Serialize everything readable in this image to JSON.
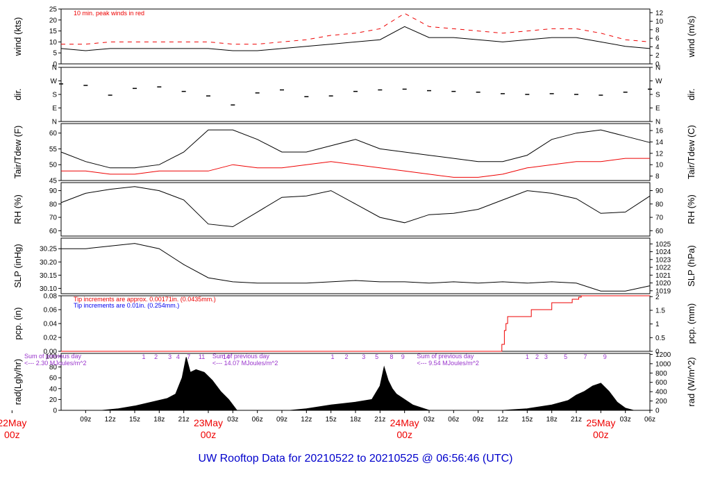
{
  "title": "UW Rooftop Data for 20210522  to  20210525 @ 06:56:46  (UTC)",
  "colors": {
    "primary": "#000000",
    "accent": "#ee0000",
    "blue": "#0000ee",
    "purple": "#9933cc",
    "title": "#0000cc"
  },
  "chart_data": {
    "type": "line",
    "x_axis": {
      "unit": "hours since 2021-05-22 06:00 UTC",
      "range": [
        0,
        72
      ],
      "ticks": [
        {
          "x": 3,
          "label": "09z"
        },
        {
          "x": 6,
          "label": "12z"
        },
        {
          "x": 9,
          "label": "15z"
        },
        {
          "x": 12,
          "label": "18z"
        },
        {
          "x": 15,
          "label": "21z"
        },
        {
          "x": 21,
          "label": "03z"
        },
        {
          "x": 24,
          "label": "06z"
        },
        {
          "x": 27,
          "label": "09z"
        },
        {
          "x": 30,
          "label": "12z"
        },
        {
          "x": 33,
          "label": "15z"
        },
        {
          "x": 36,
          "label": "18z"
        },
        {
          "x": 39,
          "label": "21z"
        },
        {
          "x": 45,
          "label": "03z"
        },
        {
          "x": 48,
          "label": "06z"
        },
        {
          "x": 51,
          "label": "09z"
        },
        {
          "x": 54,
          "label": "12z"
        },
        {
          "x": 57,
          "label": "15z"
        },
        {
          "x": 60,
          "label": "18z"
        },
        {
          "x": 63,
          "label": "21z"
        },
        {
          "x": 69,
          "label": "03z"
        },
        {
          "x": 72,
          "label": "06z"
        }
      ],
      "day_labels": [
        {
          "x": -6,
          "date": "22May",
          "hour": "00z"
        },
        {
          "x": 18,
          "date": "23May",
          "hour": "00z"
        },
        {
          "x": 42,
          "date": "24May",
          "hour": "00z"
        },
        {
          "x": 66,
          "date": "25May",
          "hour": "00z"
        }
      ]
    },
    "panels": [
      {
        "id": "wind",
        "ylabel_left": "wind (kts)",
        "ylabel_right": "wind (m/s)",
        "ylim": [
          0,
          25
        ],
        "left_ticks": [
          "0",
          "5",
          "10",
          "15",
          "20",
          "25"
        ],
        "right_ticks": [
          "0",
          "2",
          "4",
          "6",
          "8",
          "10",
          "12"
        ],
        "right_tick_values": [
          0,
          2,
          4,
          6,
          8,
          10,
          12
        ],
        "right_scale": 1.9438,
        "annotation": "10 min. peak winds in red",
        "series": [
          {
            "name": "wind",
            "x": [
              0,
              3,
              6,
              9,
              12,
              15,
              18,
              21,
              24,
              27,
              30,
              33,
              36,
              39,
              42,
              45,
              48,
              51,
              54,
              57,
              60,
              63,
              66,
              69,
              72
            ],
            "y": [
              7,
              6,
              7,
              7,
              7,
              7,
              7,
              6,
              6,
              7,
              8,
              9,
              10,
              11,
              17,
              12,
              12,
              11,
              10,
              11,
              12,
              12,
              10,
              8,
              7
            ]
          },
          {
            "name": "peak",
            "x": [
              0,
              3,
              6,
              9,
              12,
              15,
              18,
              21,
              24,
              27,
              30,
              33,
              36,
              39,
              42,
              45,
              48,
              51,
              54,
              57,
              60,
              63,
              66,
              69,
              72
            ],
            "y": [
              9,
              9,
              10,
              10,
              10,
              10,
              10,
              9,
              9,
              10,
              11,
              13,
              14,
              16,
              23,
              17,
              16,
              15,
              14,
              15,
              16,
              16,
              14,
              11,
              10
            ]
          }
        ]
      },
      {
        "id": "dir",
        "ylabel_left": "dir.",
        "ylabel_right": "dir.",
        "ylim": [
          0,
          360
        ],
        "left_ticks": [
          "N",
          "E",
          "S",
          "W",
          "N"
        ],
        "right_ticks": [
          "N",
          "E",
          "S",
          "W",
          "N"
        ],
        "series": [
          {
            "name": "direction",
            "x": [
              0,
              3,
              6,
              9,
              12,
              15,
              18,
              21,
              24,
              27,
              30,
              33,
              36,
              39,
              42,
              45,
              48,
              51,
              54,
              57,
              60,
              63,
              66,
              69,
              72
            ],
            "y": [
              250,
              240,
              175,
              220,
              230,
              200,
              170,
              110,
              190,
              210,
              165,
              170,
              200,
              210,
              215,
              205,
              200,
              195,
              185,
              180,
              185,
              180,
              175,
              195,
              215
            ]
          }
        ]
      },
      {
        "id": "temp",
        "ylabel_left": "Tair/Tdew (F)",
        "ylabel_right": "Tair/Tdew (C)",
        "ylim": [
          45,
          63
        ],
        "left_ticks": [
          "45",
          "50",
          "55",
          "60"
        ],
        "left_tick_values": [
          45,
          50,
          55,
          60
        ],
        "right_ticks": [
          "8",
          "10",
          "12",
          "14",
          "16"
        ],
        "right_tick_values": [
          8,
          10,
          12,
          14,
          16
        ],
        "series": [
          {
            "name": "Tair",
            "x": [
              0,
              3,
              6,
              9,
              12,
              15,
              18,
              21,
              24,
              27,
              30,
              33,
              36,
              39,
              42,
              45,
              48,
              51,
              54,
              57,
              60,
              63,
              66,
              69,
              72
            ],
            "y": [
              54,
              51,
              49,
              49,
              50,
              54,
              61,
              61,
              58,
              54,
              54,
              56,
              58,
              55,
              54,
              53,
              52,
              51,
              51,
              53,
              58,
              60,
              61,
              59,
              57
            ]
          },
          {
            "name": "Tdew",
            "x": [
              0,
              3,
              6,
              9,
              12,
              15,
              18,
              21,
              24,
              27,
              30,
              33,
              36,
              39,
              42,
              45,
              48,
              51,
              54,
              57,
              60,
              63,
              66,
              69,
              72
            ],
            "y": [
              48,
              48,
              47,
              47,
              48,
              48,
              48,
              50,
              49,
              49,
              50,
              51,
              50,
              49,
              48,
              47,
              46,
              46,
              47,
              49,
              50,
              51,
              51,
              52,
              52
            ]
          }
        ]
      },
      {
        "id": "rh",
        "ylabel_left": "RH (%)",
        "ylabel_right": "RH (%)",
        "ylim": [
          56,
          96
        ],
        "left_ticks": [
          "60",
          "70",
          "80",
          "90"
        ],
        "left_tick_values": [
          60,
          70,
          80,
          90
        ],
        "right_ticks": [
          "60",
          "70",
          "80",
          "90"
        ],
        "right_tick_values": [
          60,
          70,
          80,
          90
        ],
        "series": [
          {
            "name": "RH",
            "x": [
              0,
              3,
              6,
              9,
              12,
              15,
              18,
              21,
              24,
              27,
              30,
              33,
              36,
              39,
              42,
              45,
              48,
              51,
              54,
              57,
              60,
              63,
              66,
              69,
              72
            ],
            "y": [
              81,
              88,
              91,
              93,
              90,
              83,
              65,
              63,
              74,
              85,
              86,
              90,
              80,
              70,
              66,
              72,
              73,
              76,
              83,
              90,
              88,
              84,
              73,
              74,
              86
            ]
          }
        ]
      },
      {
        "id": "slp",
        "ylabel_left": "SLP (inHg)",
        "ylabel_right": "SLP (hPa)",
        "ylim": [
          30.08,
          30.29
        ],
        "left_ticks": [
          "30.10",
          "30.15",
          "30.20",
          "30.25"
        ],
        "left_tick_values": [
          30.1,
          30.15,
          30.2,
          30.25
        ],
        "right_ticks": [
          "1019",
          "1020",
          "1021",
          "1022",
          "1023",
          "1024",
          "1025"
        ],
        "right_tick_values": [
          1019,
          1020,
          1021,
          1022,
          1023,
          1024,
          1025
        ],
        "series": [
          {
            "name": "SLP",
            "x": [
              0,
              3,
              6,
              9,
              12,
              15,
              18,
              21,
              24,
              27,
              30,
              33,
              36,
              39,
              42,
              45,
              48,
              51,
              54,
              57,
              60,
              63,
              66,
              69,
              72
            ],
            "y": [
              30.25,
              30.25,
              30.26,
              30.27,
              30.25,
              30.19,
              30.14,
              30.125,
              30.12,
              30.12,
              30.12,
              30.125,
              30.13,
              30.125,
              30.125,
              30.12,
              30.125,
              30.12,
              30.125,
              30.12,
              30.125,
              30.12,
              30.09,
              30.09,
              30.11
            ]
          }
        ]
      },
      {
        "id": "pcp",
        "ylabel_left": "pcp. (in)",
        "ylabel_right": "pcp. (mm)",
        "ylim": [
          0,
          0.08
        ],
        "left_ticks": [
          "0.00",
          "0.02",
          "0.04",
          "0.06",
          "0.08"
        ],
        "left_tick_values": [
          0,
          0.02,
          0.04,
          0.06,
          0.08
        ],
        "right_ticks": [
          "0",
          "0.5",
          "1",
          "1.5",
          "2"
        ],
        "right_tick_values": [
          0,
          0.5,
          1,
          1.5,
          2
        ],
        "annotations": [
          "Tip increments are approx. 0.00171in. (0.0435mm.)",
          "Tip increments are 0.01in. (0.254mm.)"
        ],
        "series": [
          {
            "name": "precip",
            "x": [
              0,
              53.8,
              53.9,
              54.2,
              54.4,
              54.6,
              57.5,
              60.0,
              62.5,
              63.3,
              63.6,
              72
            ],
            "y": [
              0,
              0,
              0.01,
              0.03,
              0.04,
              0.05,
              0.06,
              0.07,
              0.075,
              0.078,
              0.08,
              0.08
            ]
          }
        ]
      },
      {
        "id": "rad",
        "ylabel_left": "rad(Lgly/hr)",
        "ylabel_right": "rad (W/m^2)",
        "ylim": [
          0,
          105
        ],
        "left_ticks": [
          "0",
          "20",
          "40",
          "60",
          "80",
          "100"
        ],
        "left_tick_values": [
          0,
          20,
          40,
          60,
          80,
          100
        ],
        "right_ticks": [
          "0",
          "200",
          "400",
          "600",
          "800",
          "1000",
          "1200"
        ],
        "right_tick_values": [
          0,
          200,
          400,
          600,
          800,
          1000,
          1200
        ],
        "annotations": [
          {
            "x": -4.5,
            "row": 0,
            "text": "Sum of previous day"
          },
          {
            "x": -4.5,
            "row": 1,
            "text": "<--- 2.30 MJoules/m^2"
          },
          {
            "x": 18.5,
            "row": 0,
            "text": "Sum of previous day"
          },
          {
            "x": 18.5,
            "row": 1,
            "text": "<--- 14.07 MJoules/m^2"
          },
          {
            "x": 43.5,
            "row": 0,
            "text": "Sum of previous day"
          },
          {
            "x": 43.5,
            "row": 1,
            "text": "<--- 9.54 MJoules/m^2"
          }
        ],
        "hour_marks": [
          {
            "x": 10.1,
            "label": "1"
          },
          {
            "x": 11.6,
            "label": "2"
          },
          {
            "x": 13.3,
            "label": "3"
          },
          {
            "x": 14.3,
            "label": "4"
          },
          {
            "x": 15.6,
            "label": "7"
          },
          {
            "x": 17.2,
            "label": "11"
          },
          {
            "x": 20.2,
            "label": "14"
          },
          {
            "x": 33.2,
            "label": "1"
          },
          {
            "x": 34.9,
            "label": "2"
          },
          {
            "x": 37.0,
            "label": "3"
          },
          {
            "x": 38.6,
            "label": "5"
          },
          {
            "x": 40.4,
            "label": "8"
          },
          {
            "x": 41.8,
            "label": "9"
          },
          {
            "x": 57.0,
            "label": "1"
          },
          {
            "x": 58.2,
            "label": "2"
          },
          {
            "x": 59.3,
            "label": "3"
          },
          {
            "x": 61.7,
            "label": "5"
          },
          {
            "x": 64.1,
            "label": "7"
          },
          {
            "x": 66.5,
            "label": "9"
          }
        ],
        "series": [
          {
            "name": "radiation",
            "x": [
              5,
              7,
              9,
              11,
              13,
              14,
              14.8,
              15.3,
              15.8,
              16.5,
              17.5,
              18.5,
              19.5,
              20.5,
              21.5,
              28,
              30,
              33,
              36,
              38,
              39,
              39.5,
              40,
              40.5,
              41,
              43,
              45,
              52,
              54,
              57,
              60,
              62,
              63,
              64,
              65,
              66,
              67,
              68,
              69,
              70
            ],
            "y": [
              0,
              3,
              8,
              15,
              22,
              30,
              60,
              98,
              70,
              75,
              70,
              55,
              35,
              20,
              0,
              0,
              3,
              10,
              15,
              20,
              45,
              80,
              55,
              40,
              30,
              10,
              0,
              0,
              0,
              3,
              10,
              18,
              28,
              35,
              45,
              50,
              35,
              15,
              4,
              0
            ]
          }
        ]
      }
    ]
  }
}
